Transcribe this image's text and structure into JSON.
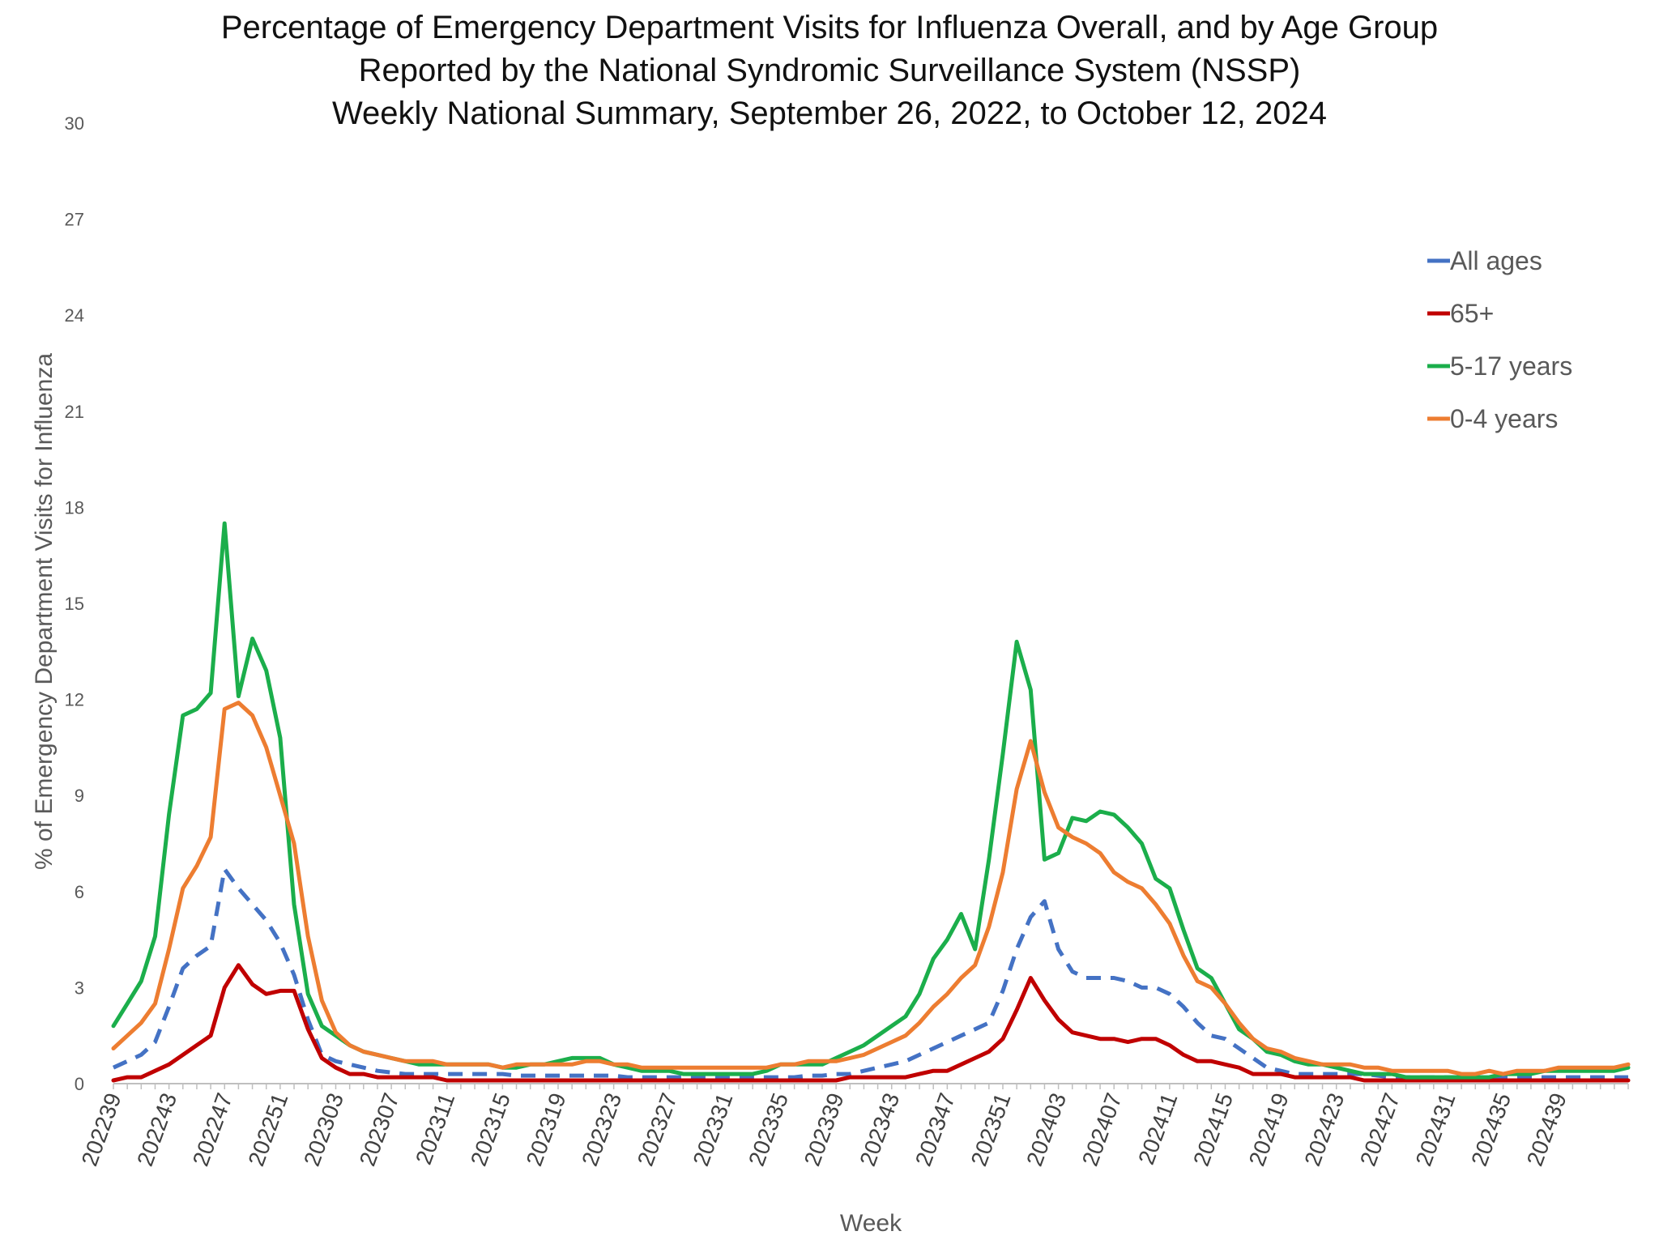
{
  "chart_data": {
    "type": "line",
    "title": [
      "Percentage of Emergency Department Visits for Influenza Overall, and by Age Group",
      "Reported by the National Syndromic Surveillance System (NSSP)",
      "Weekly National Summary, September 26, 2022, to October 12, 2024"
    ],
    "xlabel": "Week",
    "ylabel": "% of Emergency Department Visits for Influenza",
    "ylim": [
      0,
      30
    ],
    "yticks": [
      0,
      3,
      6,
      9,
      12,
      15,
      18,
      21,
      24,
      27,
      30
    ],
    "x_count": 110,
    "xtick_labels": [
      {
        "i": 0,
        "label": "202239"
      },
      {
        "i": 4,
        "label": "202243"
      },
      {
        "i": 8,
        "label": "202247"
      },
      {
        "i": 12,
        "label": "202251"
      },
      {
        "i": 16,
        "label": "202303"
      },
      {
        "i": 20,
        "label": "202307"
      },
      {
        "i": 24,
        "label": "202311"
      },
      {
        "i": 28,
        "label": "202315"
      },
      {
        "i": 32,
        "label": "202319"
      },
      {
        "i": 36,
        "label": "202323"
      },
      {
        "i": 40,
        "label": "202327"
      },
      {
        "i": 44,
        "label": "202331"
      },
      {
        "i": 48,
        "label": "202335"
      },
      {
        "i": 52,
        "label": "202339"
      },
      {
        "i": 56,
        "label": "202343"
      },
      {
        "i": 60,
        "label": "202347"
      },
      {
        "i": 64,
        "label": "202351"
      },
      {
        "i": 68,
        "label": "202403"
      },
      {
        "i": 72,
        "label": "202407"
      },
      {
        "i": 76,
        "label": "202411"
      },
      {
        "i": 80,
        "label": "202415"
      },
      {
        "i": 84,
        "label": "202419"
      },
      {
        "i": 88,
        "label": "202423"
      },
      {
        "i": 92,
        "label": "202427"
      },
      {
        "i": 96,
        "label": "202431"
      },
      {
        "i": 100,
        "label": "202435"
      },
      {
        "i": 104,
        "label": "202439"
      }
    ],
    "legend_position": "right",
    "series": [
      {
        "name": "All ages",
        "color": "#4472C4",
        "dashed": true,
        "values": [
          0.5,
          0.7,
          0.9,
          1.3,
          2.4,
          3.6,
          4.0,
          4.3,
          6.7,
          6.1,
          5.6,
          5.1,
          4.4,
          3.4,
          2.0,
          0.9,
          0.7,
          0.6,
          0.5,
          0.4,
          0.35,
          0.3,
          0.3,
          0.3,
          0.3,
          0.3,
          0.3,
          0.3,
          0.3,
          0.25,
          0.25,
          0.25,
          0.25,
          0.25,
          0.25,
          0.25,
          0.25,
          0.2,
          0.2,
          0.2,
          0.2,
          0.2,
          0.2,
          0.2,
          0.2,
          0.2,
          0.2,
          0.2,
          0.2,
          0.2,
          0.25,
          0.25,
          0.3,
          0.3,
          0.4,
          0.5,
          0.6,
          0.7,
          0.9,
          1.1,
          1.3,
          1.5,
          1.7,
          1.9,
          2.9,
          4.2,
          5.2,
          5.7,
          4.2,
          3.5,
          3.3,
          3.3,
          3.3,
          3.2,
          3.0,
          3.0,
          2.8,
          2.4,
          1.9,
          1.5,
          1.4,
          1.1,
          0.8,
          0.5,
          0.4,
          0.3,
          0.3,
          0.3,
          0.3,
          0.3,
          0.3,
          0.25,
          0.2,
          0.2,
          0.2,
          0.2,
          0.2,
          0.2,
          0.2,
          0.2,
          0.2,
          0.2,
          0.2,
          0.2,
          0.2,
          0.2,
          0.2,
          0.2,
          0.2,
          0.2
        ]
      },
      {
        "name": "65+",
        "color": "#C00000",
        "dashed": false,
        "values": [
          0.1,
          0.2,
          0.2,
          0.4,
          0.6,
          0.9,
          1.2,
          1.5,
          3.0,
          3.7,
          3.1,
          2.8,
          2.9,
          2.9,
          1.7,
          0.8,
          0.5,
          0.3,
          0.3,
          0.2,
          0.2,
          0.2,
          0.2,
          0.2,
          0.1,
          0.1,
          0.1,
          0.1,
          0.1,
          0.1,
          0.1,
          0.1,
          0.1,
          0.1,
          0.1,
          0.1,
          0.1,
          0.1,
          0.1,
          0.1,
          0.1,
          0.1,
          0.1,
          0.1,
          0.1,
          0.1,
          0.1,
          0.1,
          0.1,
          0.1,
          0.1,
          0.1,
          0.1,
          0.2,
          0.2,
          0.2,
          0.2,
          0.2,
          0.3,
          0.4,
          0.4,
          0.6,
          0.8,
          1.0,
          1.4,
          2.3,
          3.3,
          2.6,
          2.0,
          1.6,
          1.5,
          1.4,
          1.4,
          1.3,
          1.4,
          1.4,
          1.2,
          0.9,
          0.7,
          0.7,
          0.6,
          0.5,
          0.3,
          0.3,
          0.3,
          0.2,
          0.2,
          0.2,
          0.2,
          0.2,
          0.1,
          0.1,
          0.1,
          0.1,
          0.1,
          0.1,
          0.1,
          0.1,
          0.1,
          0.1,
          0.1,
          0.1,
          0.1,
          0.1,
          0.1,
          0.1,
          0.1,
          0.1,
          0.1,
          0.1
        ]
      },
      {
        "name": "5-17 years",
        "color": "#1BAE4B",
        "dashed": false,
        "values": [
          1.8,
          2.5,
          3.2,
          4.6,
          8.4,
          11.5,
          11.7,
          12.2,
          17.5,
          12.1,
          13.9,
          12.9,
          10.8,
          5.6,
          2.8,
          1.8,
          1.5,
          1.2,
          1.0,
          0.9,
          0.8,
          0.7,
          0.6,
          0.6,
          0.6,
          0.6,
          0.6,
          0.6,
          0.5,
          0.5,
          0.6,
          0.6,
          0.7,
          0.8,
          0.8,
          0.8,
          0.6,
          0.5,
          0.4,
          0.4,
          0.4,
          0.3,
          0.3,
          0.3,
          0.3,
          0.3,
          0.3,
          0.4,
          0.6,
          0.6,
          0.6,
          0.6,
          0.8,
          1.0,
          1.2,
          1.5,
          1.8,
          2.1,
          2.8,
          3.9,
          4.5,
          5.3,
          4.2,
          7.0,
          10.3,
          13.8,
          12.3,
          7.0,
          7.2,
          8.3,
          8.2,
          8.5,
          8.4,
          8.0,
          7.5,
          6.4,
          6.1,
          4.8,
          3.6,
          3.3,
          2.5,
          1.7,
          1.4,
          1.0,
          0.9,
          0.7,
          0.6,
          0.6,
          0.5,
          0.4,
          0.3,
          0.3,
          0.3,
          0.2,
          0.2,
          0.2,
          0.2,
          0.2,
          0.2,
          0.2,
          0.3,
          0.3,
          0.3,
          0.4,
          0.4,
          0.4,
          0.4,
          0.4,
          0.4,
          0.5
        ]
      },
      {
        "name": "0-4 years",
        "color": "#ED7D31",
        "dashed": false,
        "values": [
          1.1,
          1.5,
          1.9,
          2.5,
          4.2,
          6.1,
          6.8,
          7.7,
          11.7,
          11.9,
          11.5,
          10.5,
          9.0,
          7.5,
          4.6,
          2.6,
          1.6,
          1.2,
          1.0,
          0.9,
          0.8,
          0.7,
          0.7,
          0.7,
          0.6,
          0.6,
          0.6,
          0.6,
          0.5,
          0.6,
          0.6,
          0.6,
          0.6,
          0.6,
          0.7,
          0.7,
          0.6,
          0.6,
          0.5,
          0.5,
          0.5,
          0.5,
          0.5,
          0.5,
          0.5,
          0.5,
          0.5,
          0.5,
          0.6,
          0.6,
          0.7,
          0.7,
          0.7,
          0.8,
          0.9,
          1.1,
          1.3,
          1.5,
          1.9,
          2.4,
          2.8,
          3.3,
          3.7,
          4.9,
          6.6,
          9.2,
          10.7,
          9.1,
          8.0,
          7.7,
          7.5,
          7.2,
          6.6,
          6.3,
          6.1,
          5.6,
          5.0,
          4.0,
          3.2,
          3.0,
          2.5,
          1.9,
          1.4,
          1.1,
          1.0,
          0.8,
          0.7,
          0.6,
          0.6,
          0.6,
          0.5,
          0.5,
          0.4,
          0.4,
          0.4,
          0.4,
          0.4,
          0.3,
          0.3,
          0.4,
          0.3,
          0.4,
          0.4,
          0.4,
          0.5,
          0.5,
          0.5,
          0.5,
          0.5,
          0.6
        ]
      }
    ]
  }
}
